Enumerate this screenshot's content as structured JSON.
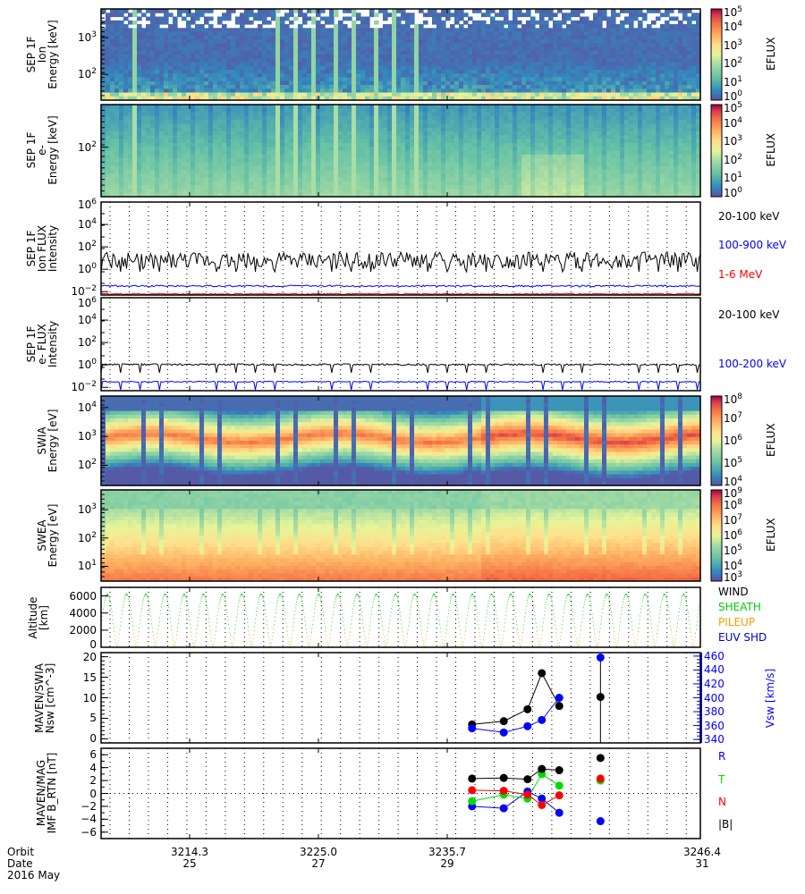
{
  "chart_data": [
    {
      "type": "heatmap",
      "panel": "sep_ion_spectrogram",
      "ylabel_lines": [
        "SEP 1F",
        "Ion",
        "Energy [keV]"
      ],
      "y_scale": "log",
      "y_ticks": [
        "10^2",
        "10^3"
      ],
      "colorbar": {
        "label": "EFLUX",
        "ticks": [
          "10^0",
          "10^1",
          "10^2",
          "10^3",
          "10^4",
          "10^5"
        ],
        "range": [
          1,
          100000
        ]
      }
    },
    {
      "type": "heatmap",
      "panel": "sep_electron_spectrogram",
      "ylabel_lines": [
        "SEP 1F",
        "e-",
        "Energy [keV]"
      ],
      "y_scale": "log",
      "y_ticks": [
        "10^2"
      ],
      "colorbar": {
        "label": "EFLUX",
        "ticks": [
          "10^0",
          "10^1",
          "10^2",
          "10^3",
          "10^4",
          "10^5"
        ],
        "range": [
          1,
          100000
        ]
      }
    },
    {
      "type": "line",
      "panel": "sep_ion_flux",
      "ylabel_lines": [
        "SEP 1F",
        "Ion FLUX",
        "Intensity"
      ],
      "y_scale": "log",
      "y_ticks": [
        "10^-2",
        "10^0",
        "10^2",
        "10^4",
        "10^6"
      ],
      "ylim": [
        0.005,
        1000000
      ],
      "series": [
        {
          "name": "20-100 keV",
          "color": "#000000",
          "typical_value": 3
        },
        {
          "name": "100-900 keV",
          "color": "#0000ff",
          "typical_value": 0.03
        },
        {
          "name": "1-6 MeV",
          "color": "#ff0000",
          "typical_value": 0.006
        }
      ]
    },
    {
      "type": "line",
      "panel": "sep_electron_flux",
      "ylabel_lines": [
        "SEP 1F",
        "e- FLUX",
        "Intensity"
      ],
      "y_scale": "log",
      "y_ticks": [
        "10^-2",
        "10^0",
        "10^2",
        "10^4",
        "10^6"
      ],
      "ylim": [
        0.005,
        1000000
      ],
      "series": [
        {
          "name": "20-100 keV",
          "color": "#000000",
          "typical_value": 1
        },
        {
          "name": "100-200 keV",
          "color": "#0000ff",
          "typical_value": 0.03
        }
      ]
    },
    {
      "type": "heatmap",
      "panel": "swia_spectrogram",
      "ylabel_lines": [
        "SWIA",
        "Energy [eV]"
      ],
      "y_scale": "log",
      "y_ticks": [
        "10^2",
        "10^3",
        "10^4"
      ],
      "colorbar": {
        "label": "EFLUX",
        "ticks": [
          "10^4",
          "10^5",
          "10^6",
          "10^7",
          "10^8"
        ],
        "range": [
          10000,
          100000000
        ]
      }
    },
    {
      "type": "heatmap",
      "panel": "swea_spectrogram",
      "ylabel_lines": [
        "SWEA",
        "Energy [eV]"
      ],
      "y_scale": "log",
      "y_ticks": [
        "10^1",
        "10^2",
        "10^3"
      ],
      "colorbar": {
        "label": "EFLUX",
        "ticks": [
          "10^3",
          "10^4",
          "10^5",
          "10^6",
          "10^7",
          "10^8",
          "10^9"
        ],
        "range": [
          1000,
          1000000000
        ]
      }
    },
    {
      "type": "line",
      "panel": "altitude",
      "ylabel_lines": [
        "Altitude",
        "[km]"
      ],
      "y_ticks": [
        "0",
        "2000",
        "4000",
        "6000"
      ],
      "ylim": [
        0,
        7000
      ],
      "orbit_apoapsis_km": 6200,
      "orbit_count": 31,
      "legend": [
        {
          "name": "WIND",
          "color": "#000000"
        },
        {
          "name": "SHEATH",
          "color": "#00cc00"
        },
        {
          "name": "PILEUP",
          "color": "#f0a000"
        },
        {
          "name": "EUV SHD",
          "color": "#0000cc"
        }
      ]
    },
    {
      "type": "scatter",
      "panel": "solar_wind",
      "ylabel_lines": [
        "MAVEN/SWIA",
        "Nsw [cm^-3]"
      ],
      "y_ticks": [
        "0",
        "5",
        "10",
        "15",
        "20"
      ],
      "ylim": [
        -1,
        21
      ],
      "y2label": "Vsw [km/s]",
      "y2_ticks": [
        "340",
        "360",
        "380",
        "400",
        "420",
        "440",
        "460"
      ],
      "y2lim": [
        335,
        465
      ],
      "x_orbit": [
        3232.0,
        3234.0,
        3235.5,
        3236.4,
        3237.5,
        3240.1
      ],
      "series": [
        {
          "name": "Nsw",
          "color": "#000000",
          "values": [
            3.5,
            4.3,
            7.2,
            16.0,
            8.0,
            10.2
          ]
        },
        {
          "name": "Vsw",
          "color": "#0000ff",
          "values": [
            356,
            350,
            359,
            368,
            400,
            458
          ]
        }
      ]
    },
    {
      "type": "scatter",
      "panel": "imf",
      "ylabel_lines": [
        "MAVEN/MAG",
        "IMF B_RTN [nT]"
      ],
      "y_ticks": [
        "-6",
        "-4",
        "-2",
        "0",
        "2",
        "4",
        "6"
      ],
      "ylim": [
        -7,
        7
      ],
      "x_orbit": [
        3232.0,
        3234.0,
        3235.5,
        3236.4,
        3237.5,
        3240.1
      ],
      "series": [
        {
          "name": "R",
          "color": "#0000ff",
          "values": [
            -2.0,
            -2.3,
            0.3,
            -0.8,
            -3.0,
            -4.3
          ]
        },
        {
          "name": "T",
          "color": "#00dd00",
          "values": [
            -1.2,
            -0.2,
            -0.8,
            3.0,
            1.2,
            2.0
          ]
        },
        {
          "name": "N",
          "color": "#ff0000",
          "values": [
            0.5,
            0.4,
            -0.2,
            -1.8,
            -0.3,
            2.3
          ]
        },
        {
          "name": "|B|",
          "color": "#000000",
          "values": [
            2.3,
            2.4,
            2.2,
            3.8,
            3.6,
            5.5
          ]
        }
      ]
    }
  ],
  "x_axis": {
    "row_labels": [
      "Orbit",
      "Date",
      "2016 May"
    ],
    "ticks": [
      {
        "orbit": "3214.3",
        "date": "25"
      },
      {
        "orbit": "3225.0",
        "date": "27"
      },
      {
        "orbit": "3235.7",
        "date": "29"
      },
      {
        "orbit": "3246.4",
        "date": "31"
      }
    ],
    "range_orbit": [
      3208.6,
      3246.4
    ]
  }
}
